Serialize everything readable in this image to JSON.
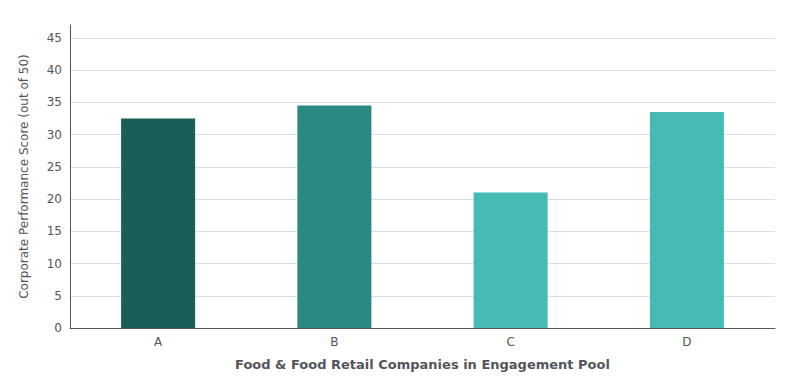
{
  "chart_data": {
    "type": "bar",
    "categories": [
      "A",
      "B",
      "C",
      "D"
    ],
    "values": [
      32.5,
      34.5,
      21.0,
      33.5
    ],
    "colors": [
      "#1a5e58",
      "#2a8a82",
      "#45bbb5",
      "#45bbb5"
    ],
    "xlabel": "Food & Food Retail Companies in Engagement Pool",
    "ylabel": "Corporate Performance Score (out of 50)",
    "ylim": [
      0,
      47
    ],
    "yticks": [
      0,
      5,
      10,
      15,
      20,
      25,
      30,
      35,
      40,
      45
    ],
    "grid": true
  }
}
